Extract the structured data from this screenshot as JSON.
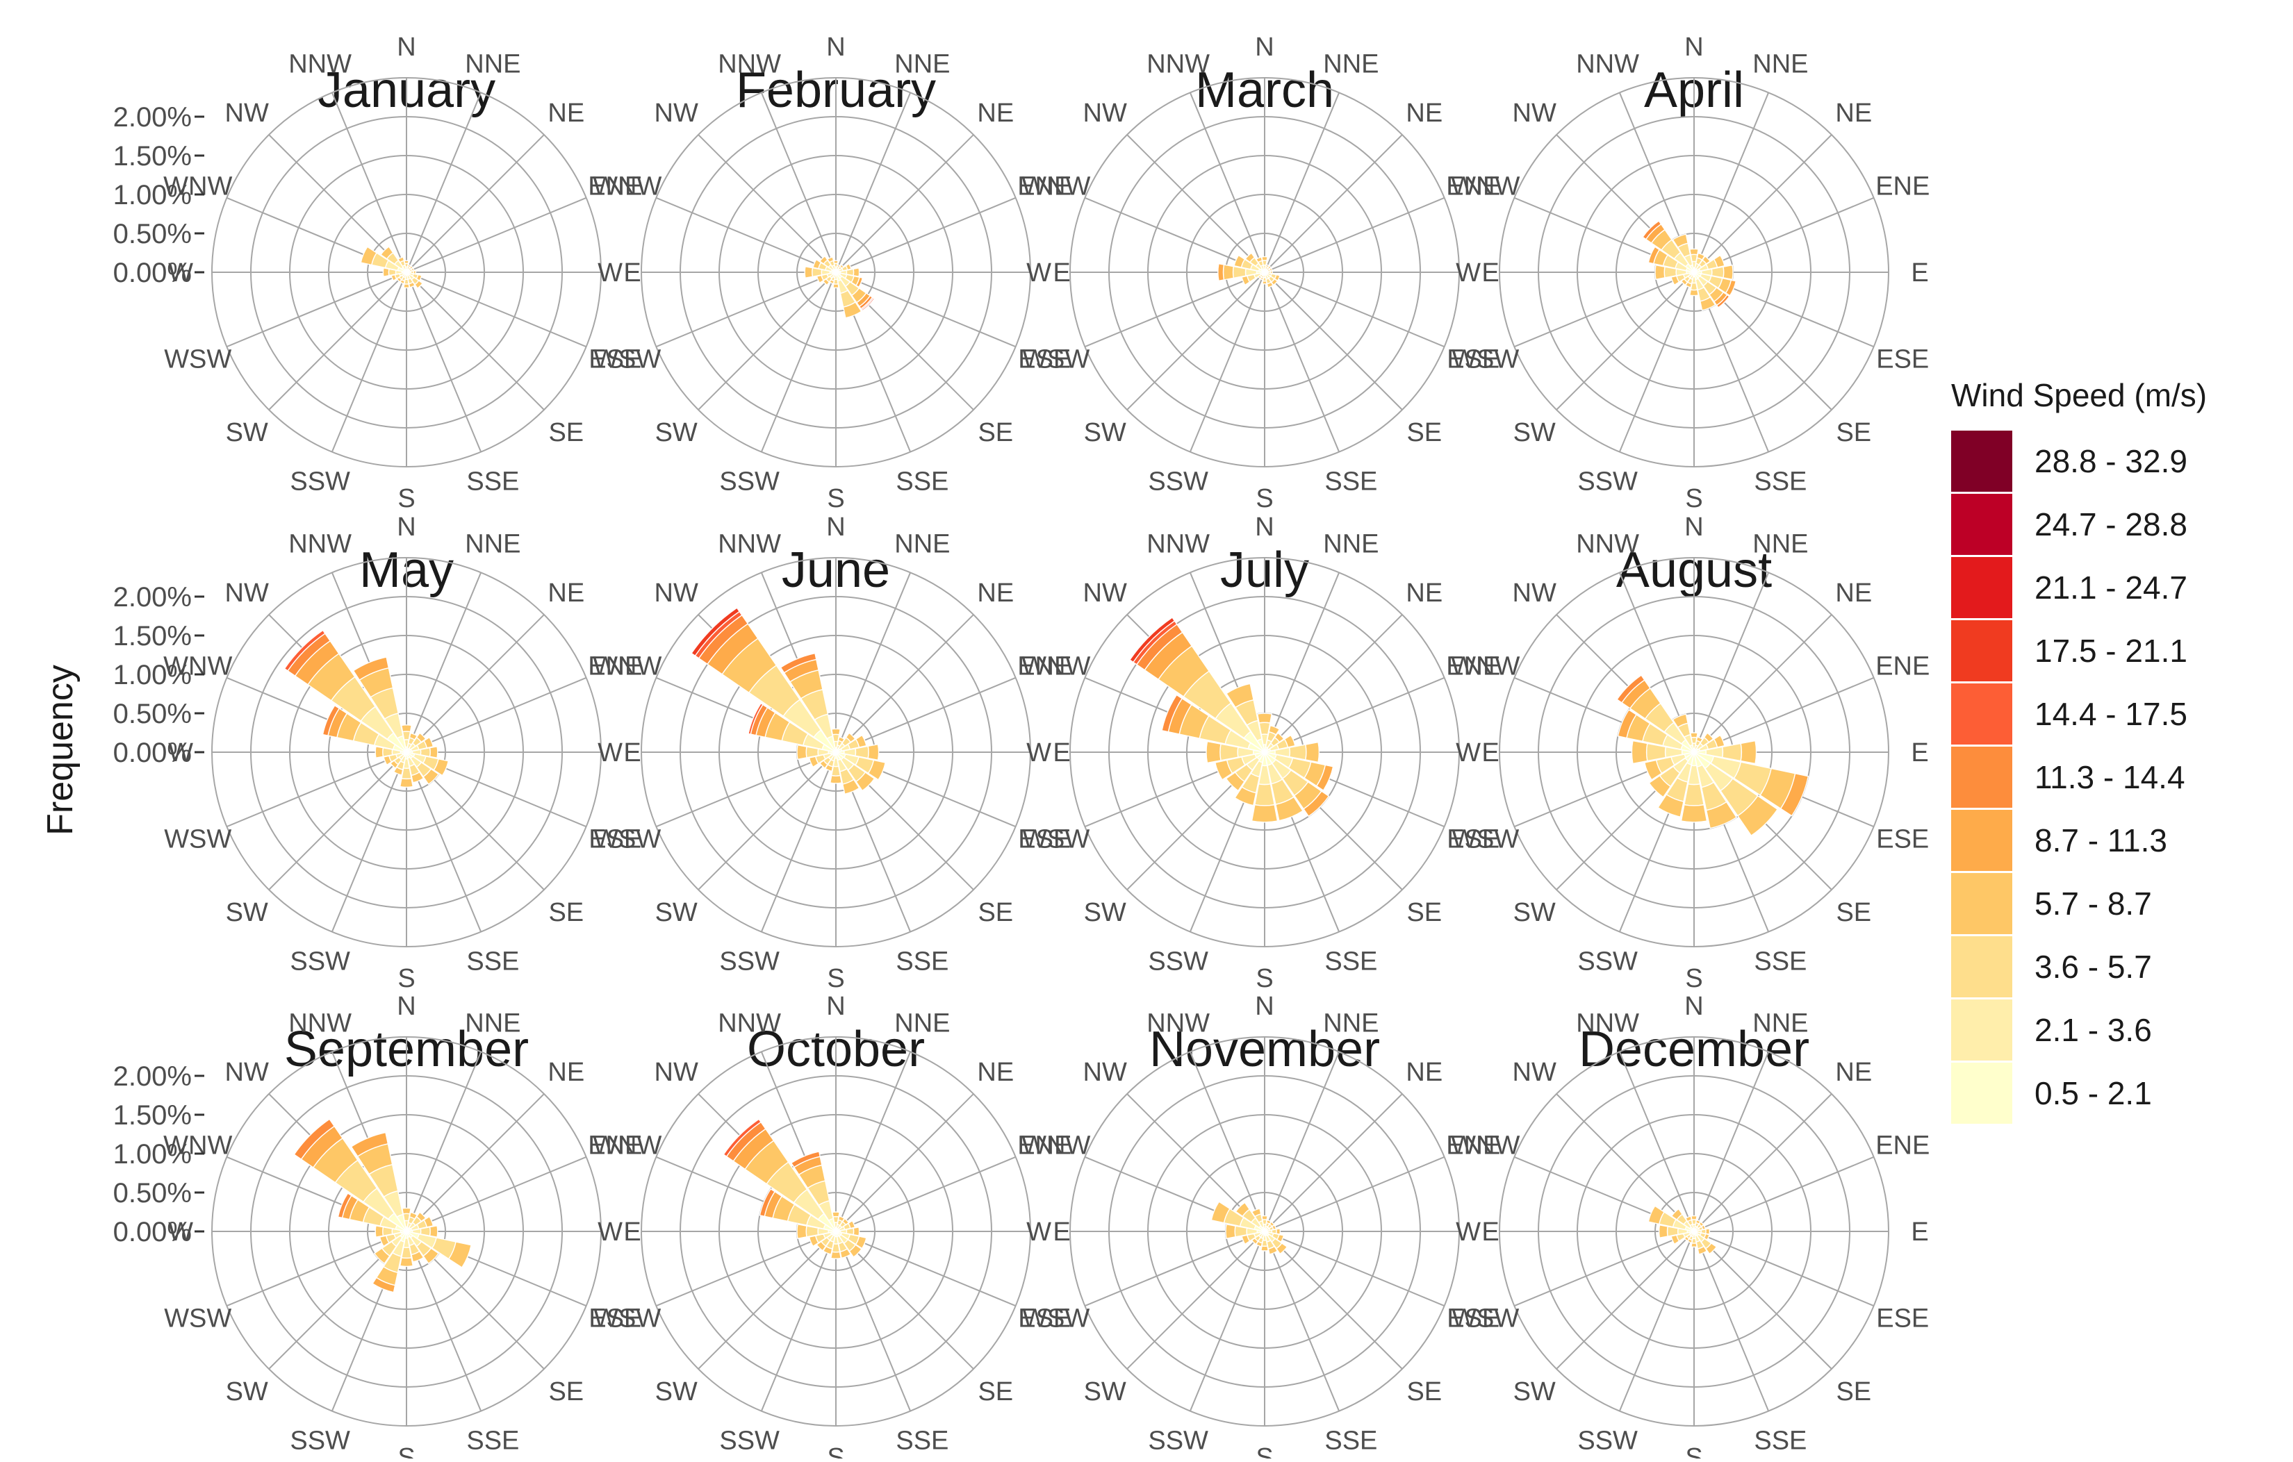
{
  "chart_data": {
    "type": "wind-rose",
    "ylabel": "Frequency",
    "y_ticks": [
      "0.00%",
      "0.50%",
      "1.00%",
      "1.50%",
      "2.00%"
    ],
    "y_tick_values": [
      0,
      0.5,
      1.0,
      1.5,
      2.0
    ],
    "rmax": 2.5,
    "directions": [
      "N",
      "NNE",
      "NE",
      "ENE",
      "E",
      "ESE",
      "SE",
      "SSE",
      "S",
      "SSW",
      "SW",
      "WSW",
      "W",
      "WNW",
      "NW",
      "NNW"
    ],
    "legend": {
      "title": "Wind Speed (m/s)",
      "bins": [
        "28.8 - 32.9",
        "24.7 - 28.8",
        "21.1 - 24.7",
        "17.5 - 21.1",
        "14.4 - 17.5",
        "11.3 - 14.4",
        "8.7 - 11.3",
        "5.7 - 8.7",
        "3.6 - 5.7",
        "2.1 - 3.6",
        "0.5 - 2.1"
      ],
      "colors": [
        "#800026",
        "#bd0026",
        "#e31a1c",
        "#f03b20",
        "#fd5e35",
        "#fd8d3c",
        "#feab4a",
        "#fec766",
        "#fede8c",
        "#ffeeab",
        "#ffffcc"
      ]
    },
    "speed_bins_low_to_high": [
      "0.5 - 2.1",
      "2.1 - 3.6",
      "3.6 - 5.7",
      "5.7 - 8.7",
      "8.7 - 11.3",
      "11.3 - 14.4",
      "14.4 - 17.5",
      "17.5 - 21.1",
      "21.1 - 24.7",
      "24.7 - 28.8",
      "28.8 - 32.9"
    ],
    "panels": [
      {
        "title": "January",
        "totals": [
          0.15,
          0.1,
          0.1,
          0.1,
          0.12,
          0.2,
          0.25,
          0.2,
          0.2,
          0.15,
          0.15,
          0.2,
          0.3,
          0.6,
          0.4,
          0.2
        ],
        "top_bin": [
          3,
          3,
          3,
          3,
          3,
          3,
          3,
          3,
          3,
          3,
          3,
          3,
          3,
          3,
          3,
          3
        ]
      },
      {
        "title": "February",
        "totals": [
          0.15,
          0.1,
          0.12,
          0.2,
          0.3,
          0.35,
          0.6,
          0.6,
          0.2,
          0.15,
          0.2,
          0.25,
          0.4,
          0.3,
          0.25,
          0.2
        ],
        "top_bin": [
          3,
          3,
          3,
          3,
          3,
          4,
          7,
          3,
          3,
          3,
          3,
          3,
          3,
          3,
          3,
          3
        ]
      },
      {
        "title": "March",
        "totals": [
          0.2,
          0.1,
          0.1,
          0.1,
          0.1,
          0.2,
          0.2,
          0.2,
          0.15,
          0.1,
          0.1,
          0.3,
          0.6,
          0.4,
          0.3,
          0.2
        ],
        "top_bin": [
          3,
          3,
          3,
          3,
          3,
          3,
          3,
          3,
          3,
          3,
          3,
          3,
          4,
          3,
          3,
          3
        ]
      },
      {
        "title": "April",
        "totals": [
          0.3,
          0.25,
          0.25,
          0.4,
          0.5,
          0.55,
          0.55,
          0.5,
          0.3,
          0.2,
          0.2,
          0.3,
          0.5,
          0.6,
          0.8,
          0.5
        ],
        "top_bin": [
          3,
          3,
          3,
          3,
          3,
          4,
          5,
          3,
          3,
          3,
          3,
          3,
          3,
          4,
          5,
          3
        ]
      },
      {
        "title": "May",
        "totals": [
          0.35,
          0.25,
          0.3,
          0.35,
          0.4,
          0.55,
          0.5,
          0.4,
          0.45,
          0.3,
          0.25,
          0.3,
          0.4,
          1.1,
          1.9,
          1.25
        ],
        "top_bin": [
          3,
          3,
          3,
          3,
          3,
          3,
          3,
          3,
          3,
          3,
          3,
          3,
          3,
          5,
          6,
          4
        ]
      },
      {
        "title": "June",
        "totals": [
          0.3,
          0.2,
          0.3,
          0.4,
          0.55,
          0.65,
          0.6,
          0.55,
          0.4,
          0.25,
          0.25,
          0.35,
          0.5,
          1.15,
          2.25,
          1.3
        ],
        "top_bin": [
          3,
          3,
          3,
          3,
          3,
          3,
          3,
          3,
          3,
          3,
          3,
          3,
          3,
          6,
          7,
          5
        ]
      },
      {
        "title": "July",
        "totals": [
          0.5,
          0.35,
          0.3,
          0.4,
          0.7,
          0.9,
          1.0,
          0.9,
          0.9,
          0.7,
          0.6,
          0.65,
          0.75,
          1.35,
          2.1,
          0.9
        ],
        "top_bin": [
          3,
          3,
          3,
          3,
          3,
          4,
          4,
          3,
          3,
          3,
          3,
          3,
          3,
          5,
          7,
          3
        ]
      },
      {
        "title": "August",
        "totals": [
          0.25,
          0.2,
          0.3,
          0.4,
          0.8,
          1.5,
          1.3,
          1.0,
          0.9,
          0.85,
          0.7,
          0.65,
          0.8,
          1.0,
          1.2,
          0.5
        ],
        "top_bin": [
          3,
          3,
          3,
          3,
          3,
          4,
          3,
          3,
          3,
          3,
          3,
          3,
          3,
          4,
          5,
          3
        ]
      },
      {
        "title": "September",
        "totals": [
          0.3,
          0.25,
          0.3,
          0.35,
          0.4,
          0.85,
          0.5,
          0.4,
          0.45,
          0.8,
          0.5,
          0.35,
          0.4,
          0.9,
          1.75,
          1.3
        ],
        "top_bin": [
          3,
          3,
          3,
          3,
          3,
          3,
          3,
          3,
          3,
          4,
          3,
          3,
          3,
          5,
          5,
          4
        ]
      },
      {
        "title": "October",
        "totals": [
          0.25,
          0.2,
          0.2,
          0.25,
          0.3,
          0.4,
          0.4,
          0.35,
          0.35,
          0.3,
          0.3,
          0.35,
          0.5,
          1.0,
          1.75,
          1.05
        ],
        "top_bin": [
          3,
          3,
          3,
          3,
          3,
          3,
          3,
          3,
          3,
          3,
          3,
          3,
          3,
          5,
          6,
          5
        ]
      },
      {
        "title": "November",
        "totals": [
          0.2,
          0.15,
          0.15,
          0.15,
          0.2,
          0.25,
          0.35,
          0.3,
          0.25,
          0.2,
          0.2,
          0.3,
          0.5,
          0.7,
          0.45,
          0.3
        ],
        "top_bin": [
          3,
          3,
          3,
          3,
          3,
          3,
          3,
          3,
          3,
          3,
          3,
          3,
          3,
          3,
          3,
          3
        ]
      },
      {
        "title": "December",
        "totals": [
          0.2,
          0.15,
          0.15,
          0.15,
          0.2,
          0.2,
          0.35,
          0.3,
          0.2,
          0.15,
          0.15,
          0.3,
          0.45,
          0.6,
          0.35,
          0.2
        ],
        "top_bin": [
          3,
          3,
          3,
          3,
          3,
          3,
          3,
          3,
          3,
          3,
          3,
          3,
          3,
          3,
          3,
          3
        ]
      }
    ]
  }
}
